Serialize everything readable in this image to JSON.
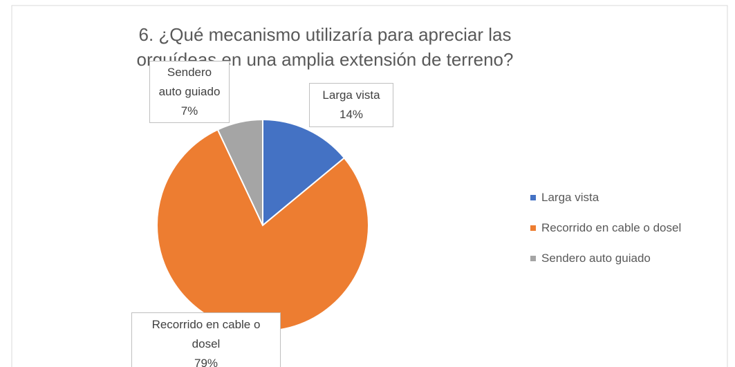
{
  "chart_data": {
    "type": "pie",
    "title": "6. ¿Qué mecanismo utilizaría para apreciar las orquídeas en una amplia extensión de terreno?",
    "categories": [
      "Larga vista",
      "Recorrido en cable o dosel",
      "Sendero auto guiado"
    ],
    "values": [
      14,
      79,
      7
    ],
    "value_labels": [
      "14%",
      "79%",
      "7%"
    ],
    "colors": [
      "#4472c4",
      "#ed7d31",
      "#a5a5a5"
    ],
    "legend": "right"
  }
}
